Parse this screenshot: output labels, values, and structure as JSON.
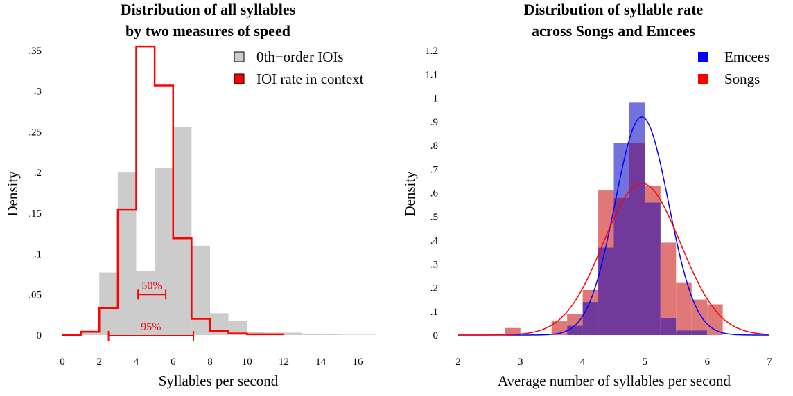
{
  "colors": {
    "grey_bars": "#cccccc",
    "ioi_rate_line": "#ff0000",
    "emcees": "#0000ff",
    "songs": "#ff0000",
    "emcees_bar": "#7272dc",
    "songs_bar": "#e07878",
    "overlap_bar": "#70399a"
  },
  "chart_data": [
    {
      "type": "bar",
      "title": [
        "Distribution of all syllables",
        "by two measures of speed"
      ],
      "xlabel": "Syllables per second",
      "ylabel": "Density",
      "xlim": [
        0,
        17
      ],
      "ylim": [
        0,
        0.35
      ],
      "x_ticks": [
        0,
        2,
        4,
        6,
        8,
        10,
        12,
        14,
        16
      ],
      "x_tick_labels": [
        "0",
        "2",
        "4",
        "6",
        "8",
        "10",
        "12",
        "14",
        "16"
      ],
      "y_ticks": [
        0,
        0.05,
        0.1,
        0.15,
        0.2,
        0.25,
        0.3,
        0.35
      ],
      "y_tick_labels": [
        "0",
        ".05",
        ".1",
        ".15",
        ".2",
        ".25",
        ".3",
        ".35"
      ],
      "grid": false,
      "legend": {
        "position": "top-right",
        "entries": [
          "0th−order IOIs",
          "IOI rate in context"
        ]
      },
      "series": [
        {
          "name": "0th−order IOIs",
          "style": "filled-bars",
          "bin_edges": [
            1,
            2,
            3,
            4,
            5,
            6,
            7,
            8,
            9,
            10,
            11,
            12,
            13,
            14,
            15,
            16,
            17
          ],
          "values": [
            0.007,
            0.077,
            0.2,
            0.079,
            0.206,
            0.256,
            0.11,
            0.027,
            0.017,
            0.004,
            0.003,
            0.003,
            0.001,
            0.001,
            0.0005,
            0.0005
          ]
        },
        {
          "name": "IOI rate in context",
          "style": "step-outline",
          "bin_edges": [
            0,
            1,
            2,
            3,
            4,
            5,
            6,
            7,
            8,
            9,
            10,
            11,
            12
          ],
          "values": [
            0,
            0.004,
            0.033,
            0.154,
            0.355,
            0.307,
            0.119,
            0.02,
            0.005,
            0.002,
            0.001,
            0.001
          ]
        }
      ],
      "annotations": [
        {
          "text": "50%",
          "x_range": [
            4.1,
            5.6
          ],
          "y": 0.05
        },
        {
          "text": "95%",
          "x_range": [
            2.5,
            7.1
          ],
          "y": 0.0
        }
      ]
    },
    {
      "type": "bar",
      "title": [
        "Distribution of syllable rate",
        "across Songs and Emcees"
      ],
      "xlabel": "Average number of syllables per second",
      "ylabel": "Density",
      "xlim": [
        2,
        7
      ],
      "ylim": [
        0,
        1.2
      ],
      "x_ticks": [
        2,
        3,
        4,
        5,
        6,
        7
      ],
      "x_tick_labels": [
        "2",
        "3",
        "4",
        "5",
        "6",
        "7"
      ],
      "y_ticks": [
        0,
        0.1,
        0.2,
        0.3,
        0.4,
        0.5,
        0.6,
        0.7,
        0.8,
        0.9,
        1,
        1.1,
        1.2
      ],
      "y_tick_labels": [
        "0",
        ".1",
        ".2",
        ".3",
        ".4",
        ".5",
        ".6",
        ".7",
        ".8",
        ".9",
        "1",
        "1.1",
        "1.2"
      ],
      "grid": false,
      "legend": {
        "position": "top-right",
        "entries": [
          "Emcees",
          "Songs"
        ]
      },
      "series": [
        {
          "name": "Emcees",
          "style": "translucent-bars",
          "bin_edges": [
            3.75,
            4.0,
            4.25,
            4.5,
            4.75,
            5.0,
            5.25,
            5.5,
            5.75,
            6.0
          ],
          "values": [
            0.04,
            0.14,
            0.37,
            0.81,
            0.98,
            0.56,
            0.07,
            0.02,
            0.02
          ]
        },
        {
          "name": "Songs",
          "style": "translucent-bars",
          "bin_edges": [
            2.75,
            3.0,
            3.25,
            3.5,
            3.75,
            4.0,
            4.25,
            4.5,
            4.75,
            5.0,
            5.25,
            5.5,
            5.75,
            6.0,
            6.25
          ],
          "values": [
            0.03,
            0.0,
            0.0,
            0.06,
            0.09,
            0.19,
            0.61,
            0.58,
            0.81,
            0.63,
            0.39,
            0.22,
            0.15,
            0.13
          ]
        },
        {
          "name": "Emcees",
          "style": "normal-curve",
          "mean": 4.95,
          "sd": 0.43,
          "peak_density": 0.92
        },
        {
          "name": "Songs",
          "style": "normal-curve",
          "mean": 4.95,
          "sd": 0.62,
          "peak_density": 0.64
        }
      ]
    }
  ]
}
